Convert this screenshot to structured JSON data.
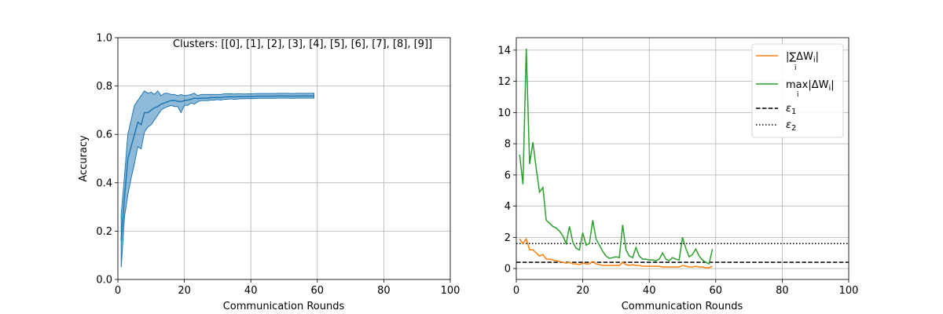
{
  "chart_data": [
    {
      "type": "line",
      "xlabel": "Communication Rounds",
      "ylabel": "Accuracy",
      "xlim": [
        0,
        100
      ],
      "ylim": [
        0,
        1
      ],
      "xticks": [
        "0",
        "20",
        "40",
        "60",
        "80",
        "100"
      ],
      "yticks": [
        "0.0",
        "0.2",
        "0.4",
        "0.6",
        "0.8",
        "1.0"
      ],
      "grid": true,
      "annotation": "Clusters: [[0], [1], [2], [3], [4], [5], [6], [7], [8], [9]]",
      "colors": {
        "line": "#1f77b4",
        "band": "#1f77b4"
      },
      "x": [
        1,
        2,
        3,
        4,
        5,
        6,
        7,
        8,
        9,
        10,
        11,
        12,
        13,
        14,
        15,
        16,
        17,
        18,
        19,
        20,
        21,
        22,
        23,
        24,
        25,
        26,
        27,
        28,
        29,
        30,
        31,
        32,
        33,
        34,
        35,
        36,
        37,
        38,
        39,
        40,
        41,
        42,
        43,
        44,
        45,
        46,
        47,
        48,
        49,
        50,
        51,
        52,
        53,
        54,
        55,
        56,
        57,
        58,
        59
      ],
      "series": [
        {
          "values": [
            0.16,
            0.34,
            0.5,
            0.55,
            0.6,
            0.65,
            0.64,
            0.69,
            0.69,
            0.7,
            0.71,
            0.715,
            0.725,
            0.73,
            0.735,
            0.74,
            0.74,
            0.737,
            0.735,
            0.74,
            0.742,
            0.745,
            0.75,
            0.748,
            0.75,
            0.75,
            0.75,
            0.752,
            0.752,
            0.753,
            0.752,
            0.755,
            0.755,
            0.756,
            0.755,
            0.756,
            0.757,
            0.756,
            0.757,
            0.757,
            0.757,
            0.758,
            0.758,
            0.758,
            0.758,
            0.758,
            0.758,
            0.759,
            0.759,
            0.759,
            0.759,
            0.758,
            0.758,
            0.759,
            0.759,
            0.759,
            0.759,
            0.759,
            0.759
          ],
          "lower": [
            0.05,
            0.26,
            0.35,
            0.42,
            0.48,
            0.55,
            0.54,
            0.61,
            0.63,
            0.64,
            0.66,
            0.68,
            0.7,
            0.71,
            0.715,
            0.72,
            0.715,
            0.715,
            0.69,
            0.72,
            0.72,
            0.73,
            0.725,
            0.735,
            0.74,
            0.74,
            0.74,
            0.742,
            0.742,
            0.744,
            0.742,
            0.745,
            0.745,
            0.747,
            0.745,
            0.746,
            0.748,
            0.747,
            0.748,
            0.748,
            0.748,
            0.749,
            0.749,
            0.749,
            0.749,
            0.749,
            0.749,
            0.75,
            0.75,
            0.75,
            0.75,
            0.749,
            0.749,
            0.75,
            0.75,
            0.75,
            0.75,
            0.75,
            0.75
          ],
          "upper": [
            0.27,
            0.43,
            0.6,
            0.66,
            0.72,
            0.74,
            0.76,
            0.78,
            0.77,
            0.775,
            0.765,
            0.78,
            0.76,
            0.77,
            0.77,
            0.765,
            0.765,
            0.76,
            0.765,
            0.76,
            0.762,
            0.765,
            0.77,
            0.76,
            0.765,
            0.765,
            0.765,
            0.765,
            0.765,
            0.765,
            0.765,
            0.768,
            0.768,
            0.768,
            0.767,
            0.768,
            0.768,
            0.767,
            0.768,
            0.768,
            0.768,
            0.769,
            0.769,
            0.769,
            0.769,
            0.769,
            0.769,
            0.77,
            0.77,
            0.77,
            0.77,
            0.769,
            0.769,
            0.77,
            0.77,
            0.77,
            0.77,
            0.77,
            0.77
          ]
        }
      ]
    },
    {
      "type": "line",
      "xlabel": "Communication Rounds",
      "ylabel": "",
      "xlim": [
        0,
        100
      ],
      "ylim": [
        -0.7,
        14.8
      ],
      "xticks": [
        "0",
        "20",
        "40",
        "60",
        "80",
        "100"
      ],
      "yticks": [
        "0",
        "2",
        "4",
        "6",
        "8",
        "10",
        "12",
        "14"
      ],
      "grid": true,
      "legend_placement": "upper right",
      "x": [
        1,
        2,
        3,
        4,
        5,
        6,
        7,
        8,
        9,
        10,
        11,
        12,
        13,
        14,
        15,
        16,
        17,
        18,
        19,
        20,
        21,
        22,
        23,
        24,
        25,
        26,
        27,
        28,
        29,
        30,
        31,
        32,
        33,
        34,
        35,
        36,
        37,
        38,
        39,
        40,
        41,
        42,
        43,
        44,
        45,
        46,
        47,
        48,
        49,
        50,
        51,
        52,
        53,
        54,
        55,
        56,
        57,
        58,
        59
      ],
      "series": [
        {
          "name": "|∑ΔW_i|",
          "name_main": "|∑ΔW",
          "name_sub": "i",
          "name_tail": "|",
          "name_below": "i",
          "color": "#ff7f0e",
          "values": [
            1.9,
            1.6,
            1.9,
            1.2,
            1.2,
            1.0,
            0.8,
            0.9,
            0.6,
            0.6,
            0.55,
            0.5,
            0.45,
            0.4,
            0.35,
            0.4,
            0.3,
            0.3,
            0.25,
            0.35,
            0.3,
            0.3,
            0.45,
            0.3,
            0.25,
            0.2,
            0.2,
            0.2,
            0.2,
            0.2,
            0.2,
            0.4,
            0.25,
            0.2,
            0.25,
            0.2,
            0.2,
            0.15,
            0.15,
            0.15,
            0.15,
            0.15,
            0.15,
            0.1,
            0.1,
            0.1,
            0.1,
            0.1,
            0.1,
            0.2,
            0.15,
            0.1,
            0.1,
            0.15,
            0.1,
            0.1,
            0.05,
            0.05,
            0.15
          ]
        },
        {
          "name": "max_i |ΔW_i|",
          "name_main": "max|ΔW",
          "name_sub": "i",
          "name_tail": "|",
          "name_below": "i",
          "color": "#2ca02c",
          "values": [
            7.3,
            5.4,
            14.1,
            6.7,
            8.1,
            6.4,
            4.9,
            5.2,
            3.1,
            2.9,
            2.7,
            2.6,
            2.4,
            2.1,
            1.6,
            2.7,
            1.7,
            1.3,
            1.2,
            2.3,
            1.5,
            1.6,
            3.1,
            1.9,
            1.5,
            1.1,
            0.8,
            0.65,
            0.7,
            0.75,
            0.7,
            2.8,
            1.2,
            0.8,
            0.7,
            1.35,
            0.8,
            0.6,
            0.6,
            0.55,
            0.55,
            0.5,
            0.6,
            1.0,
            0.6,
            0.5,
            0.7,
            0.6,
            0.55,
            2.0,
            1.3,
            0.75,
            0.9,
            1.25,
            0.8,
            0.55,
            0.4,
            0.3,
            1.25
          ]
        },
        {
          "name": "ε_1",
          "name_main": "ε",
          "name_sub": "1",
          "style": "dashed",
          "color": "#000000",
          "constant": 0.4
        },
        {
          "name": "ε_2",
          "name_main": "ε",
          "name_sub": "2",
          "style": "dotted",
          "color": "#000000",
          "constant": 1.6
        }
      ]
    }
  ]
}
